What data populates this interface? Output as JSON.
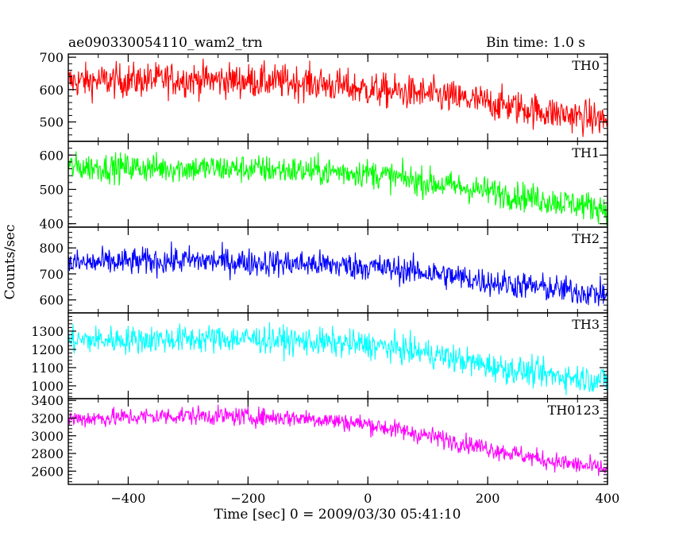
{
  "header": {
    "title": "ae090330054110_wam2_trn",
    "bin_time": "Bin time: 1.0 s"
  },
  "chart_data": {
    "type": "line",
    "xlabel": "Time [sec] 0 = 2009/03/30 05:41:10",
    "ylabel": "Counts/sec",
    "xlim": [
      -500,
      400
    ],
    "x_ticks": [
      -400,
      -200,
      0,
      200,
      400
    ],
    "x_range": [
      -500,
      400
    ],
    "panels": [
      {
        "name": "TH0",
        "color": "#ff0000",
        "ylim": [
          440,
          710
        ],
        "y_ticks": [
          500,
          600,
          700
        ],
        "trend_x": [
          -500,
          -300,
          -100,
          0,
          100,
          200,
          300,
          400
        ],
        "trend_y": [
          625,
          632,
          622,
          600,
          585,
          560,
          530,
          505
        ],
        "noise": 38
      },
      {
        "name": "TH1",
        "color": "#00ff00",
        "ylim": [
          390,
          640
        ],
        "y_ticks": [
          400,
          500,
          600
        ],
        "trend_x": [
          -500,
          -200,
          0,
          100,
          200,
          300,
          400
        ],
        "trend_y": [
          565,
          560,
          548,
          520,
          495,
          468,
          445
        ],
        "noise": 30
      },
      {
        "name": "TH2",
        "color": "#0000ff",
        "ylim": [
          550,
          880
        ],
        "y_ticks": [
          600,
          700,
          800
        ],
        "trend_x": [
          -500,
          -300,
          -100,
          0,
          100,
          200,
          300,
          400
        ],
        "trend_y": [
          740,
          752,
          738,
          728,
          705,
          670,
          645,
          620
        ],
        "noise": 38
      },
      {
        "name": "TH3",
        "color": "#00ffff",
        "ylim": [
          930,
          1400
        ],
        "y_ticks": [
          1000,
          1100,
          1200,
          1300
        ],
        "trend_x": [
          -500,
          -200,
          0,
          100,
          200,
          300,
          400
        ],
        "trend_y": [
          1250,
          1260,
          1225,
          1180,
          1110,
          1060,
          1030
        ],
        "noise": 55
      },
      {
        "name": "TH0123",
        "color": "#ff00ff",
        "ylim": [
          2450,
          3420
        ],
        "y_ticks": [
          2600,
          2800,
          3000,
          3200,
          3400
        ],
        "trend_x": [
          -500,
          -300,
          -100,
          0,
          100,
          200,
          300,
          400
        ],
        "trend_y": [
          3190,
          3230,
          3200,
          3130,
          3000,
          2860,
          2720,
          2620
        ],
        "noise": 75
      }
    ]
  }
}
